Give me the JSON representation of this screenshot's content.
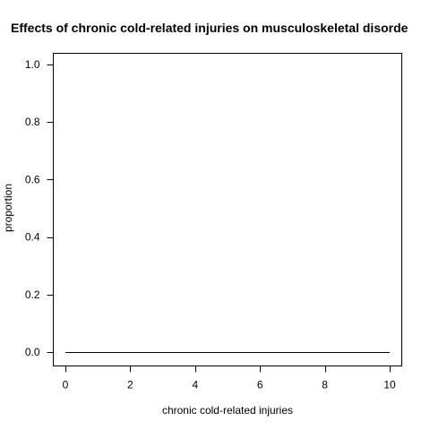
{
  "chart_data": {
    "type": "line",
    "title": "Effects of chronic cold-related injuries on musculoskeletal disorde",
    "xlabel": "chronic cold-related injuries",
    "ylabel": "proportion",
    "xlim": [
      0,
      10
    ],
    "ylim": [
      0,
      1
    ],
    "x_ticks": [
      0,
      2,
      4,
      6,
      8,
      10
    ],
    "y_ticks": [
      0.0,
      0.2,
      0.4,
      0.6,
      0.8,
      1.0
    ],
    "x_tick_labels": [
      "0",
      "2",
      "4",
      "6",
      "8",
      "10"
    ],
    "y_tick_labels": [
      "0.0",
      "0.2",
      "0.4",
      "0.6",
      "0.8",
      "1.0"
    ],
    "grid": false,
    "line_color": "#000000",
    "series": [
      {
        "x": [
          0,
          10
        ],
        "y": [
          0,
          0
        ]
      }
    ]
  }
}
